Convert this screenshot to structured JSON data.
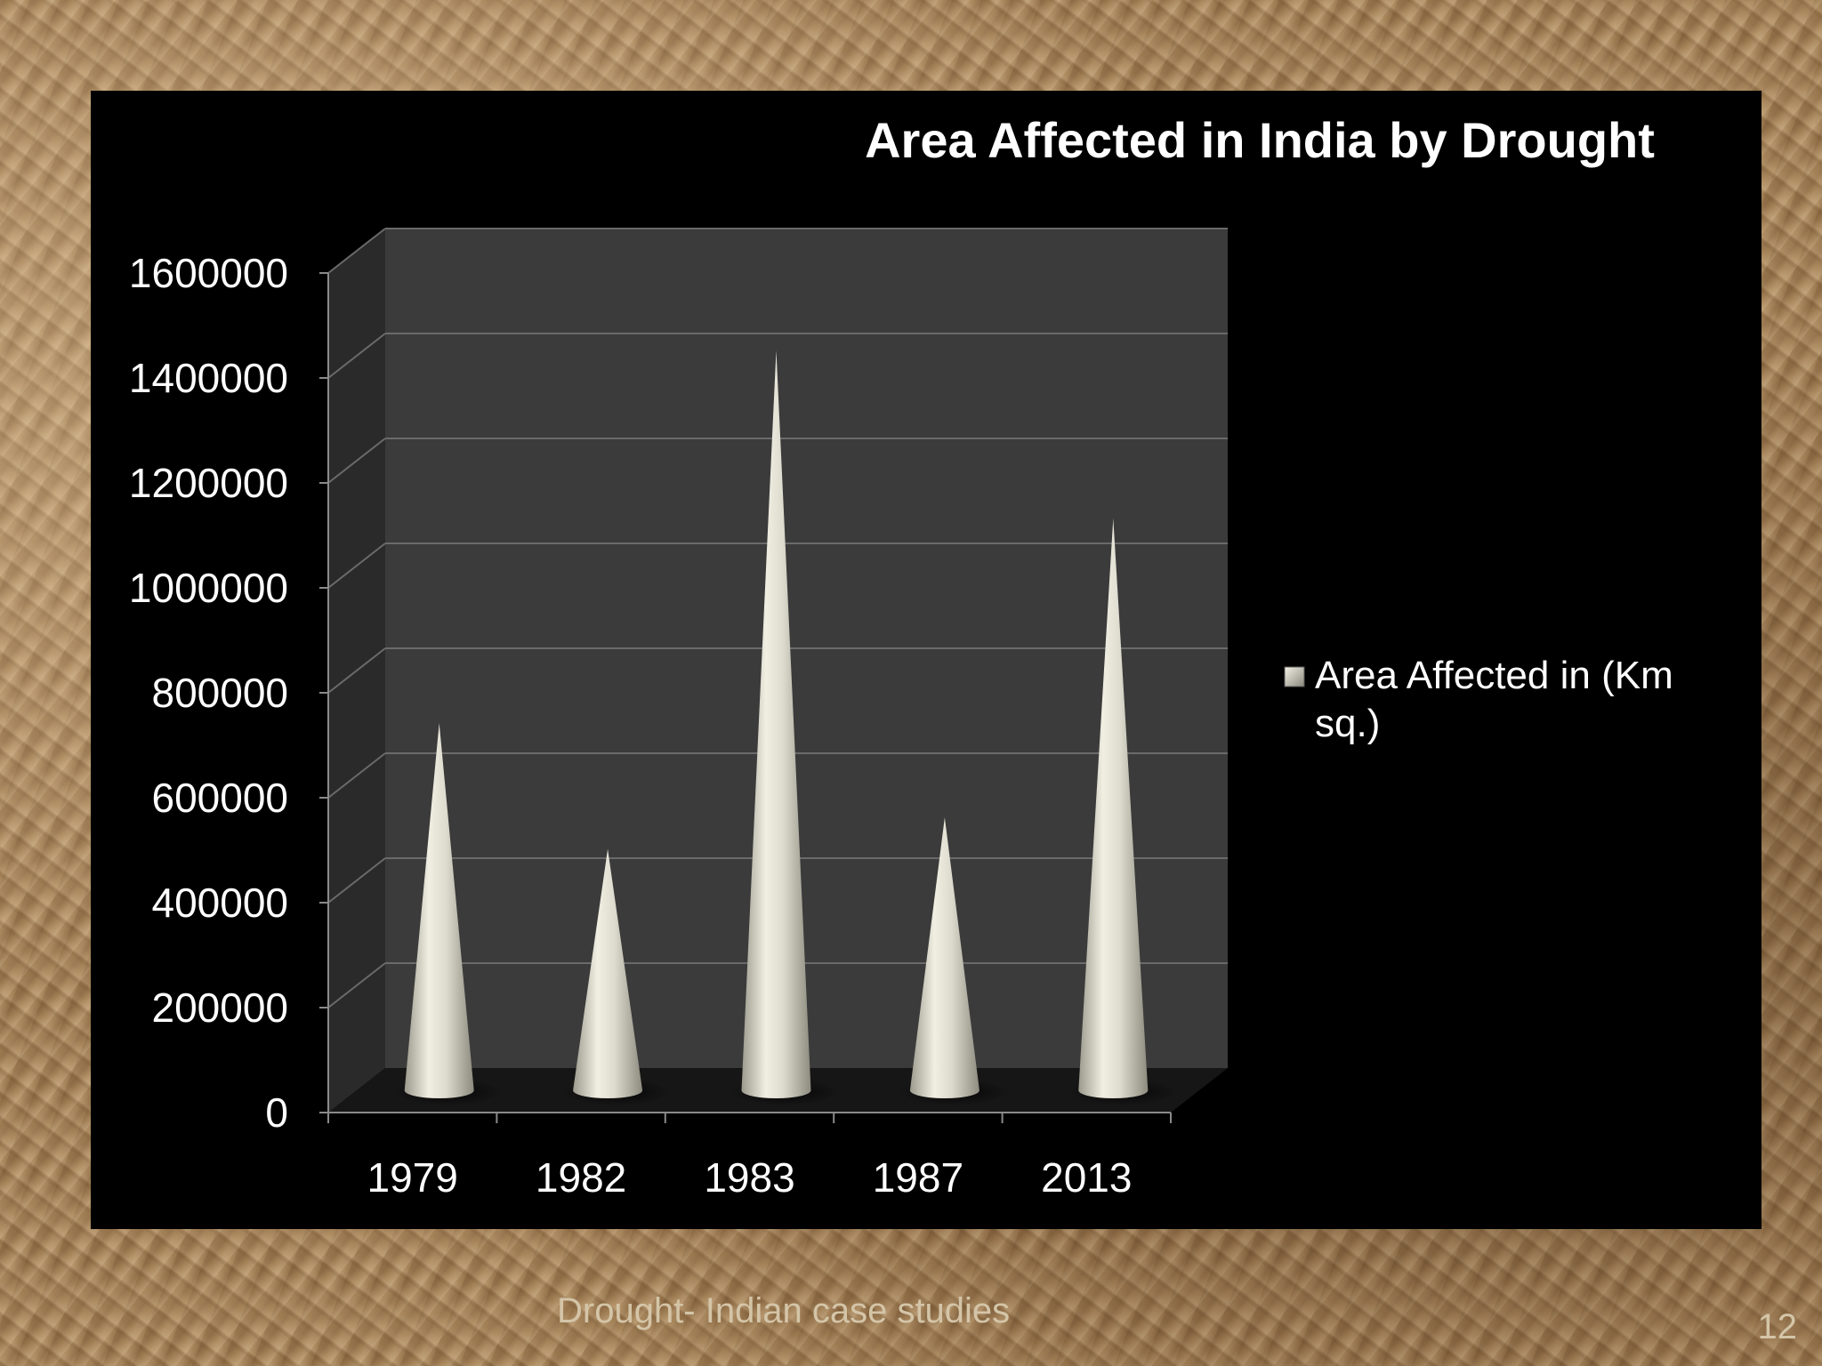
{
  "chart_data": {
    "type": "bar",
    "style": "3d-cone",
    "title": "Area Affected in India by Drought",
    "categories": [
      "1979",
      "1982",
      "1983",
      "1987",
      "2013"
    ],
    "series": [
      {
        "name": "Area Affected in (Km sq.)",
        "values": [
          700000,
          460000,
          1410000,
          520000,
          1090000
        ]
      }
    ],
    "legend": {
      "line1": "Area Affected in (Km",
      "line2": "sq.)",
      "position": "right"
    },
    "yticks": [
      "0",
      "200000",
      "400000",
      "600000",
      "800000",
      "1000000",
      "1200000",
      "1400000",
      "1600000"
    ],
    "ylim": [
      0,
      1600000
    ],
    "grid": true,
    "colors": {
      "panel": "#000000",
      "back_wall": "#3b3b3c",
      "side_wall": "#2a2a2b",
      "floor": "#161616",
      "gridline": "#6a6a6a",
      "cone": "#d8d6c8",
      "text": "#ffffff"
    }
  },
  "footer": {
    "text": "Drought- Indian case studies",
    "page_number": "12"
  }
}
